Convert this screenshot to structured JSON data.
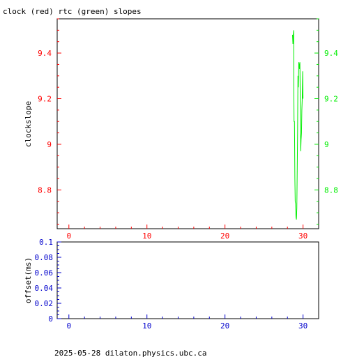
{
  "title": "clock (red) rtc (green) slopes",
  "footer": "2025-05-28  dilaton.physics.ubc.ca",
  "colors": {
    "red": "#ff0000",
    "green": "#00ee00",
    "blue": "#0000cc",
    "frame": "#000000"
  },
  "chart_data": [
    {
      "type": "line",
      "ylabel": "clockslope",
      "xlim": [
        -1.5,
        32
      ],
      "ylim": [
        8.63,
        9.55
      ],
      "x_ticks": [
        0,
        10,
        20,
        30
      ],
      "x_tick_labels": [
        "0",
        "10",
        "20",
        "30"
      ],
      "y_ticks_left": [
        8.8,
        9,
        9.2,
        9.4
      ],
      "y_tick_labels_left": [
        "8.8",
        "9",
        "9.2",
        "9.4"
      ],
      "y_ticks_right": [
        8.8,
        9,
        9.2,
        9.4
      ],
      "y_tick_labels_right": [
        "8.8",
        "9",
        "9.2",
        "9.4"
      ],
      "series": [
        {
          "color": "green",
          "points": [
            [
              28.65,
              9.48
            ],
            [
              28.7,
              9.44
            ],
            [
              28.75,
              9.48
            ],
            [
              28.8,
              9.5
            ],
            [
              28.82,
              9.25
            ],
            [
              28.85,
              9.1
            ],
            [
              28.9,
              9.1
            ],
            [
              28.95,
              8.85
            ],
            [
              29.0,
              8.75
            ],
            [
              29.05,
              8.74
            ],
            [
              29.1,
              8.68
            ],
            [
              29.15,
              8.67
            ],
            [
              29.2,
              8.72
            ],
            [
              29.3,
              9.05
            ],
            [
              29.35,
              9.3
            ],
            [
              29.4,
              9.25
            ],
            [
              29.45,
              9.36
            ],
            [
              29.5,
              9.35
            ],
            [
              29.55,
              9.33
            ],
            [
              29.6,
              9.36
            ],
            [
              29.65,
              9.18
            ],
            [
              29.7,
              8.97
            ],
            [
              29.75,
              9.02
            ],
            [
              29.8,
              9.05
            ],
            [
              29.85,
              9.15
            ],
            [
              29.9,
              9.2
            ],
            [
              29.95,
              9.32
            ],
            [
              30.0,
              9.2
            ]
          ]
        }
      ]
    },
    {
      "type": "line",
      "ylabel": "offset(ms)",
      "xlim": [
        -1.5,
        32
      ],
      "ylim": [
        0,
        0.1
      ],
      "x_ticks": [
        0,
        10,
        20,
        30
      ],
      "x_tick_labels": [
        "0",
        "10",
        "20",
        "30"
      ],
      "y_ticks": [
        0,
        0.02,
        0.04,
        0.06,
        0.08,
        0.1
      ],
      "y_tick_labels": [
        "0",
        "0.02",
        "0.04",
        "0.06",
        "0.08",
        "0.1"
      ],
      "series": []
    }
  ]
}
